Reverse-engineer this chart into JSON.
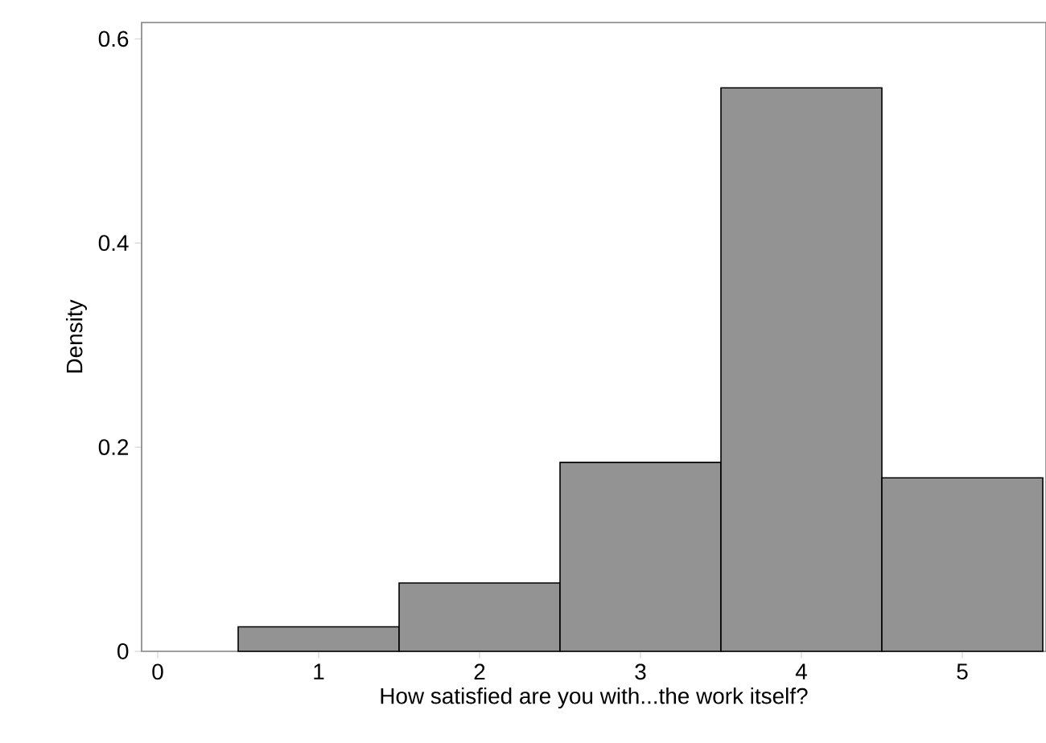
{
  "chart_data": {
    "type": "histogram",
    "xlabel": "How satisfied are you with...the work itself?",
    "ylabel": "Density",
    "bins": [
      0.5,
      1.5,
      2.5,
      3.5,
      4.5,
      5.5
    ],
    "values": [
      0.024,
      0.067,
      0.185,
      0.552,
      0.17
    ],
    "color": "#939393",
    "xlim": [
      -0.1,
      5.52
    ],
    "ylim": [
      0,
      0.616
    ],
    "xticks": [
      0,
      1,
      2,
      3,
      4,
      5
    ],
    "yticks": [
      0,
      0.2,
      0.4,
      0.6
    ],
    "grid": false
  }
}
